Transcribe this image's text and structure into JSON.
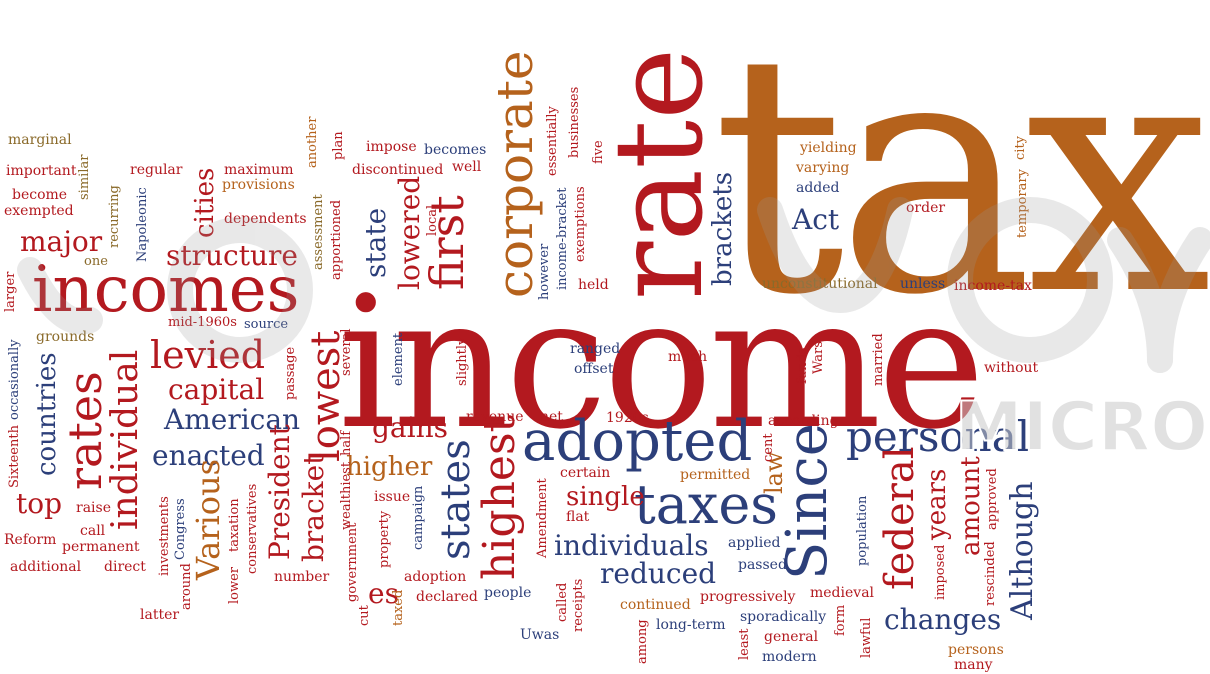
{
  "colors": {
    "red": "#b3191f",
    "blue": "#2c3f7a",
    "orange": "#b5621c",
    "olive": "#8a6a2a"
  },
  "cloud": {
    "big": {
      "tax": "tax",
      "income": "income",
      "incomes": "incomes",
      "rate": "rate",
      "corporate": "corporate",
      "adopted": "adopted",
      "taxes": "taxes",
      "Since": "Since",
      "personal": "personal",
      "rates": "rates",
      "individual": "individual",
      "first": "first",
      "highest": "highest",
      "states": "states",
      "federal": "federal",
      "lowest": "lowest",
      "levied": "levied",
      "structure": "structure",
      "major": "major",
      "capital": "capital",
      "American": "American",
      "enacted": "enacted",
      "President": "President",
      "Various": "Various",
      "bracket": "bracket",
      "higher": "higher",
      "gains": "gains",
      "single": "single",
      "individuals": "individuals",
      "reduced": "reduced",
      "changes": "changes",
      "Although": "Although",
      "amount": "amount",
      "years": "years",
      "countries": "countries",
      "cities": "cities",
      "top": "top",
      "es": "es",
      "Act": "Act",
      "brackets": "brackets",
      "law": "law",
      "state": "state",
      "lowered": "lowered"
    },
    "small": {
      "marginal": "marginal",
      "important": "important",
      "become": "become",
      "exempted": "exempted",
      "similar": "similar",
      "regular": "regular",
      "recurring": "recurring",
      "Napoleonic": "Napoleonic",
      "maximum": "maximum",
      "provisions": "provisions",
      "dependents": "dependents",
      "another": "another",
      "assessment": "assessment",
      "apportioned": "apportioned",
      "plan": "plan",
      "impose": "impose",
      "discontinued": "discontinued",
      "becomes": "becomes",
      "well": "well",
      "local": "local",
      "essentially": "essentially",
      "businesses": "businesses",
      "five": "five",
      "exemptions": "exemptions",
      "income_bracket": "income-bracket",
      "however": "however",
      "held": "held",
      "yielding": "yielding",
      "varying": "varying",
      "added": "added",
      "order": "order",
      "city": "city",
      "temporary": "temporary",
      "unconstitutional": "unconstitutional",
      "unless": "unless",
      "income_tax": "income-tax",
      "one": "one",
      "larger": "larger",
      "grounds": "grounds",
      "occasionally": "occasionally",
      "mid_1960s": "mid-1960s",
      "source": "source",
      "passage": "passage",
      "several": "several",
      "element": "element",
      "slightly": "slightly",
      "ranged": "ranged",
      "offset": "offset",
      "much": "much",
      "funds": "funds",
      "Wars": "Wars",
      "married": "married",
      "without": "without",
      "half": "half",
      "revenue": "revenue",
      "net": "net",
      "t1920s": "1920s",
      "according": "according",
      "Sixteenth": "Sixteenth",
      "wealthiest": "wealthiest",
      "certain": "certain",
      "permitted": "permitted",
      "cent": "cent",
      "raise": "raise",
      "call": "call",
      "Reform": "Reform",
      "permanent": "permanent",
      "additional": "additional",
      "direct": "direct",
      "investments": "investments",
      "Congress": "Congress",
      "taxation": "taxation",
      "conservatives": "conservatives",
      "issue": "issue",
      "campaign": "campaign",
      "Amendment": "Amendment",
      "flat": "flat",
      "government": "government",
      "property": "property",
      "applied": "applied",
      "passed": "passed",
      "population": "population",
      "imposed": "imposed",
      "rescinded": "rescinded",
      "approved": "approved",
      "around": "around",
      "lower": "lower",
      "number": "number",
      "cut": "cut",
      "adoption": "adoption",
      "declared": "declared",
      "taxed": "taxed",
      "people": "people",
      "called": "called",
      "receipts": "receipts",
      "progressively": "progressively",
      "medieval": "medieval",
      "continued": "continued",
      "sporadically": "sporadically",
      "form": "form",
      "latter": "latter",
      "Uwas": "Uwas",
      "among": "among",
      "long_term": "long-term",
      "least": "least",
      "general": "general",
      "lawful": "lawful",
      "persons": "persons",
      "modern": "modern",
      "many": "many"
    }
  },
  "watermark": {
    "text": "MICRO"
  }
}
